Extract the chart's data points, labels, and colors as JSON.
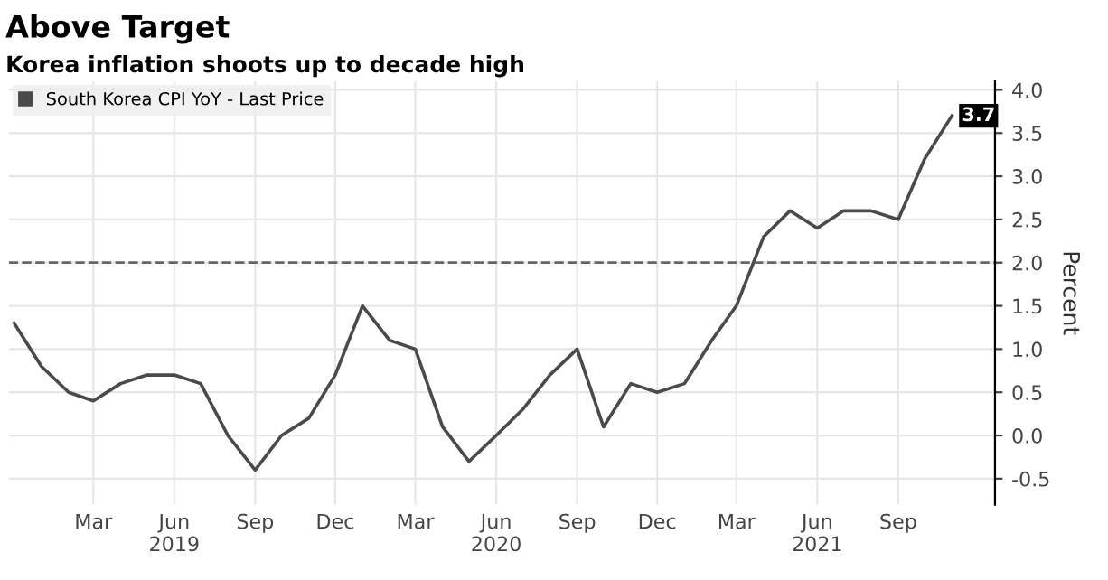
{
  "chart_data": {
    "type": "line",
    "title": "Above Target",
    "subtitle": "Korea inflation shoots up to decade high",
    "ylabel": "Percent",
    "x": [
      "2018-12",
      "2019-01",
      "2019-02",
      "2019-03",
      "2019-04",
      "2019-05",
      "2019-06",
      "2019-07",
      "2019-08",
      "2019-09",
      "2019-10",
      "2019-11",
      "2019-12",
      "2020-01",
      "2020-02",
      "2020-03",
      "2020-04",
      "2020-05",
      "2020-06",
      "2020-07",
      "2020-08",
      "2020-09",
      "2020-10",
      "2020-11",
      "2020-12",
      "2021-01",
      "2021-02",
      "2021-03",
      "2021-04",
      "2021-05",
      "2021-06",
      "2021-07",
      "2021-08",
      "2021-09",
      "2021-10",
      "2021-11"
    ],
    "series": [
      {
        "name": "South Korea CPI YoY - Last Price",
        "color": "#4a4a4a",
        "values": [
          1.3,
          0.8,
          0.5,
          0.4,
          0.6,
          0.7,
          0.7,
          0.6,
          0.0,
          -0.4,
          0.0,
          0.2,
          0.7,
          1.5,
          1.1,
          1.0,
          0.1,
          -0.3,
          0.0,
          0.3,
          0.7,
          1.0,
          0.1,
          0.6,
          0.5,
          0.6,
          1.1,
          1.5,
          2.3,
          2.6,
          2.4,
          2.6,
          2.6,
          2.5,
          3.2,
          3.7
        ],
        "value_labels": [
          null,
          null,
          null,
          null,
          null,
          null,
          null,
          null,
          null,
          null,
          null,
          null,
          null,
          null,
          null,
          null,
          null,
          null,
          null,
          null,
          null,
          null,
          null,
          null,
          null,
          null,
          null,
          null,
          null,
          null,
          null,
          null,
          null,
          null,
          null,
          "3.7"
        ]
      }
    ],
    "xlim": [
      "2018-11-25",
      "2021-12-20"
    ],
    "xticks": [
      {
        "value": "2019-03",
        "label": "Mar"
      },
      {
        "value": "2019-06",
        "label": "Jun\n2019"
      },
      {
        "value": "2019-09",
        "label": "Sep"
      },
      {
        "value": "2019-12",
        "label": "Dec"
      },
      {
        "value": "2020-03",
        "label": "Mar"
      },
      {
        "value": "2020-06",
        "label": "Jun\n2020"
      },
      {
        "value": "2020-09",
        "label": "Sep"
      },
      {
        "value": "2020-12",
        "label": "Dec"
      },
      {
        "value": "2021-03",
        "label": "Mar"
      },
      {
        "value": "2021-06",
        "label": "Jun\n2021"
      },
      {
        "value": "2021-09",
        "label": "Sep"
      }
    ],
    "ylim": [
      -0.8,
      4.1
    ],
    "yticks": [
      {
        "value": -0.5,
        "label": "-0.5"
      },
      {
        "value": 0,
        "label": "0.0"
      },
      {
        "value": 0.5,
        "label": "0.5"
      },
      {
        "value": 1,
        "label": "1.0"
      },
      {
        "value": 1.5,
        "label": "1.5"
      },
      {
        "value": 2,
        "label": "2.0"
      },
      {
        "value": 2.5,
        "label": "2.5"
      },
      {
        "value": 3,
        "label": "3.0"
      },
      {
        "value": 3.5,
        "label": "3.5"
      },
      {
        "value": 4,
        "label": "4.0"
      }
    ],
    "ref_lines": [
      {
        "axis": "y",
        "value": 2,
        "color": "#666666",
        "line_style": "dashed"
      }
    ],
    "grid": true,
    "legend": "top left",
    "marker": "none",
    "line_style": "solid"
  }
}
